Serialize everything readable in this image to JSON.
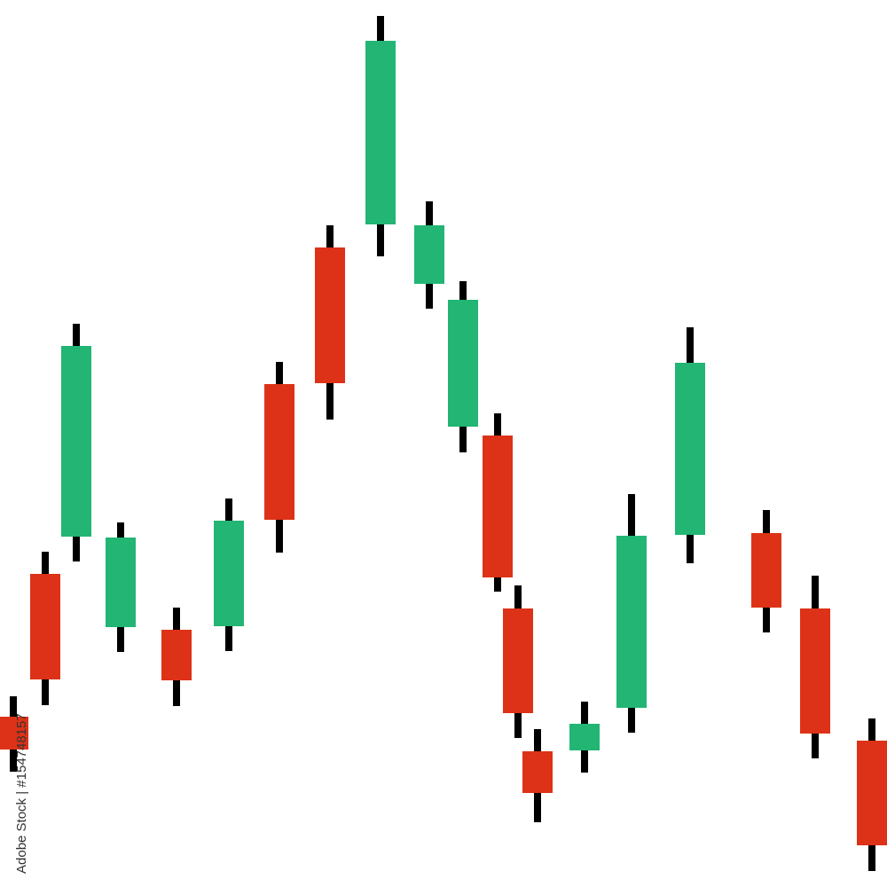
{
  "chart_data": {
    "type": "candlestick",
    "title": "",
    "xlabel": "",
    "ylabel": "",
    "axes_visible": false,
    "grid": false,
    "ylim": [
      0,
      100
    ],
    "colors": {
      "up": "#22b573",
      "down": "#dd3217",
      "wick": "#000000"
    },
    "candles": [
      {
        "open": 19.2,
        "high": 21.5,
        "low": 13.0,
        "close": 15.5,
        "direction": "down"
      },
      {
        "open": 35.3,
        "high": 37.8,
        "low": 20.5,
        "close": 23.4,
        "direction": "down"
      },
      {
        "open": 39.5,
        "high": 63.5,
        "low": 36.7,
        "close": 61.0,
        "direction": "up"
      },
      {
        "open": 29.3,
        "high": 41.1,
        "low": 26.5,
        "close": 39.4,
        "direction": "up"
      },
      {
        "open": 29.0,
        "high": 31.5,
        "low": 20.4,
        "close": 23.3,
        "direction": "down"
      },
      {
        "open": 29.4,
        "high": 43.8,
        "low": 26.6,
        "close": 41.3,
        "direction": "up"
      },
      {
        "open": 56.7,
        "high": 59.2,
        "low": 37.7,
        "close": 41.4,
        "direction": "down"
      },
      {
        "open": 72.1,
        "high": 74.6,
        "low": 52.7,
        "close": 56.8,
        "direction": "down"
      },
      {
        "open": 74.7,
        "high": 98.2,
        "low": 71.1,
        "close": 95.4,
        "direction": "up"
      },
      {
        "open": 68.0,
        "high": 77.3,
        "low": 65.2,
        "close": 74.6,
        "direction": "up"
      },
      {
        "open": 51.9,
        "high": 68.3,
        "low": 49.0,
        "close": 66.2,
        "direction": "up"
      },
      {
        "open": 50.9,
        "high": 53.4,
        "low": 33.3,
        "close": 34.9,
        "direction": "down"
      },
      {
        "open": 31.4,
        "high": 34.0,
        "low": 16.8,
        "close": 19.6,
        "direction": "down"
      },
      {
        "open": 15.3,
        "high": 17.8,
        "low": 7.3,
        "close": 10.6,
        "direction": "down"
      },
      {
        "open": 15.4,
        "high": 20.9,
        "low": 12.9,
        "close": 18.4,
        "direction": "up"
      },
      {
        "open": 20.2,
        "high": 44.3,
        "low": 17.4,
        "close": 39.6,
        "direction": "up"
      },
      {
        "open": 39.7,
        "high": 63.1,
        "low": 36.5,
        "close": 59.1,
        "direction": "up"
      },
      {
        "open": 39.9,
        "high": 42.5,
        "low": 28.7,
        "close": 31.5,
        "direction": "down"
      },
      {
        "open": 31.4,
        "high": 35.1,
        "low": 14.5,
        "close": 17.3,
        "direction": "down"
      },
      {
        "open": 16.5,
        "high": 19.0,
        "low": 1.8,
        "close": 4.7,
        "direction": "down"
      }
    ]
  },
  "watermark": {
    "credit": "Adobe Stock | #154748157"
  }
}
